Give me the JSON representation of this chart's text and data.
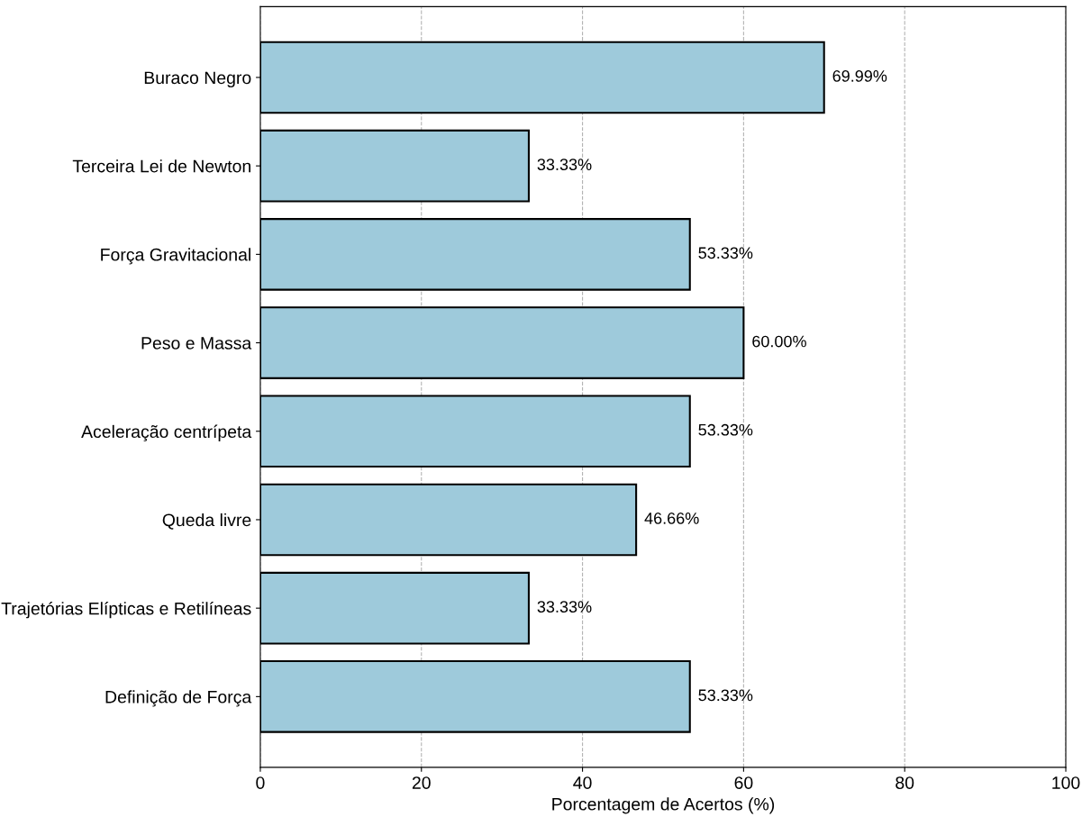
{
  "chart_data": {
    "type": "bar",
    "orientation": "horizontal",
    "xlabel": "Porcentagem de Acertos (%)",
    "categories": [
      "Buraco Negro",
      "Terceira Lei de Newton",
      "Força Gravitacional",
      "Peso e Massa",
      "Aceleração centrípeta",
      "Queda livre",
      "Trajetórias Elípticas e Retilíneas",
      "Definição de Força"
    ],
    "values": [
      69.99,
      33.33,
      53.33,
      60.0,
      53.33,
      46.66,
      33.33,
      53.33
    ],
    "value_labels": [
      "69.99%",
      "33.33%",
      "53.33%",
      "60.00%",
      "53.33%",
      "46.66%",
      "33.33%",
      "53.33%"
    ],
    "color": "#9ecadb",
    "xlim": [
      0,
      100
    ],
    "xticks": [
      0,
      20,
      40,
      60,
      80,
      100
    ],
    "grid": "x"
  }
}
